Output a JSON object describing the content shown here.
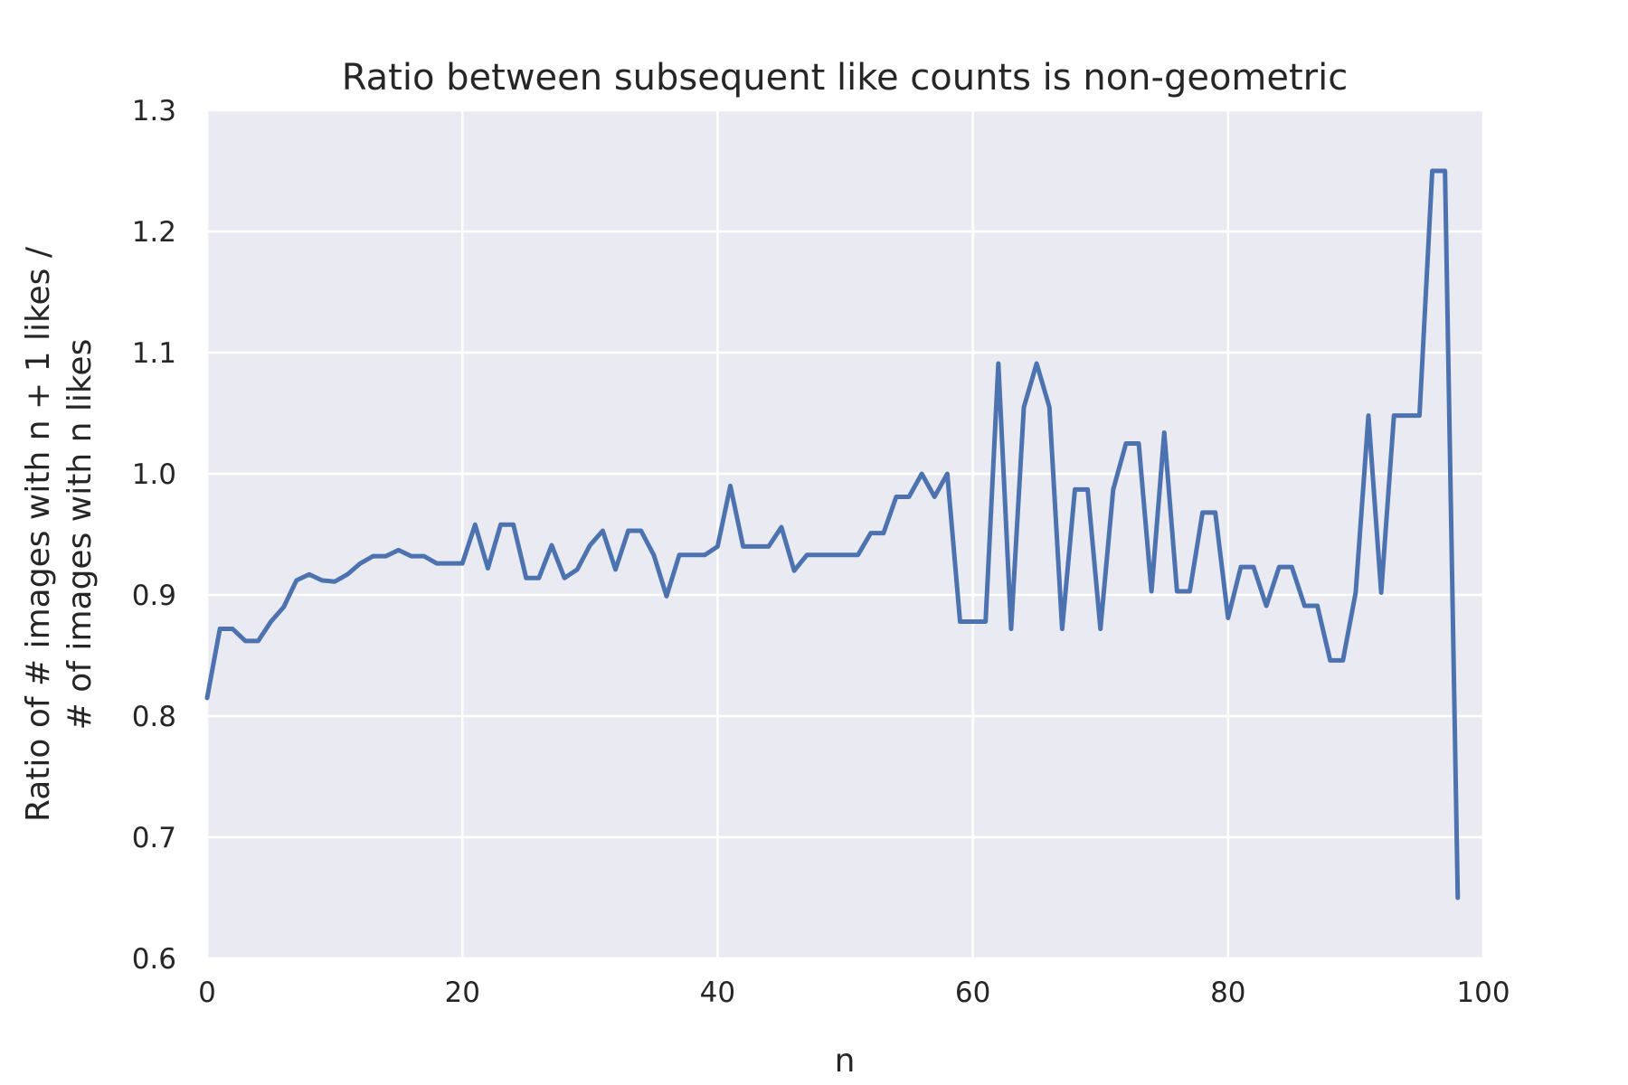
{
  "chart_data": {
    "type": "line",
    "title": "Ratio between subsequent like counts is non-geometric",
    "xlabel": "n",
    "ylabel_lines": [
      "Ratio of # images with n + 1 likes /",
      "# of images with n likes"
    ],
    "xlim": [
      0,
      100
    ],
    "ylim": [
      0.6,
      1.3
    ],
    "xticks": [
      0,
      20,
      40,
      60,
      80,
      100
    ],
    "yticks": [
      0.6,
      0.7,
      0.8,
      0.9,
      1.0,
      1.1,
      1.2,
      1.3
    ],
    "ytick_labels": [
      "0.6",
      "0.7",
      "0.8",
      "0.9",
      "1.0",
      "1.1",
      "1.2",
      "1.3"
    ],
    "grid": true,
    "line_color": "#4c72b0",
    "plot_background": "#eaeaf2",
    "x": [
      0,
      1,
      2,
      3,
      4,
      5,
      6,
      7,
      8,
      9,
      10,
      11,
      12,
      13,
      14,
      15,
      16,
      17,
      18,
      19,
      20,
      21,
      22,
      23,
      24,
      25,
      26,
      27,
      28,
      29,
      30,
      31,
      32,
      33,
      34,
      35,
      36,
      37,
      38,
      39,
      40,
      41,
      42,
      43,
      44,
      45,
      46,
      47,
      48,
      49,
      50,
      51,
      52,
      53,
      54,
      55,
      56,
      57,
      58,
      59,
      60,
      61,
      62,
      63,
      64,
      65,
      66,
      67,
      68,
      69,
      70,
      71,
      72,
      73,
      74,
      75,
      76,
      77,
      78,
      79,
      80,
      81,
      82,
      83,
      84,
      85,
      86,
      87,
      88,
      89,
      90,
      91,
      92,
      93,
      94,
      95,
      96,
      97,
      98
    ],
    "y": [
      0.815,
      0.872,
      0.872,
      0.862,
      0.862,
      0.878,
      0.89,
      0.912,
      0.917,
      0.912,
      0.911,
      0.917,
      0.926,
      0.932,
      0.932,
      0.937,
      0.932,
      0.932,
      0.926,
      0.926,
      0.926,
      0.958,
      0.922,
      0.958,
      0.958,
      0.914,
      0.914,
      0.941,
      0.914,
      0.921,
      0.941,
      0.953,
      0.921,
      0.953,
      0.953,
      0.933,
      0.899,
      0.933,
      0.933,
      0.933,
      0.94,
      0.99,
      0.94,
      0.94,
      0.94,
      0.956,
      0.92,
      0.933,
      0.933,
      0.933,
      0.933,
      0.933,
      0.951,
      0.951,
      0.981,
      0.981,
      1.0,
      0.981,
      1.0,
      0.878,
      0.878,
      0.878,
      1.091,
      0.872,
      1.055,
      1.091,
      1.055,
      0.872,
      0.987,
      0.987,
      0.872,
      0.987,
      1.025,
      1.025,
      0.903,
      1.034,
      0.903,
      0.903,
      0.968,
      0.968,
      0.881,
      0.923,
      0.923,
      0.891,
      0.923,
      0.923,
      0.891,
      0.891,
      0.846,
      0.846,
      0.902,
      1.048,
      0.902,
      1.048,
      1.048,
      1.048,
      1.25,
      1.25,
      0.65
    ]
  }
}
